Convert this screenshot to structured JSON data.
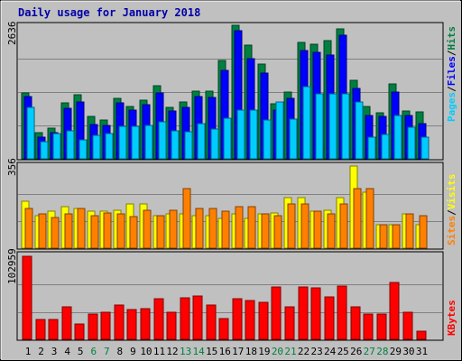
{
  "title": "Daily usage for January 2018",
  "colors": {
    "background": "#c0c0c0",
    "title": "#0000aa",
    "hits": "#008040",
    "files": "#0000ff",
    "pages": "#00ccff",
    "visits": "#ffff00",
    "sites": "#ff8000",
    "kbytes": "#ff0000",
    "weekend_label": "#008040"
  },
  "side_labels": {
    "top": [
      "Pages",
      "Files",
      "Hits"
    ],
    "mid": [
      "Sites",
      "Visits"
    ],
    "bottom": [
      "KBytes"
    ]
  },
  "chart_data": [
    {
      "type": "bar",
      "panel": "hits-files-pages",
      "max_label": "2636",
      "ylim": [
        0,
        2636
      ],
      "categories": [
        "1",
        "2",
        "3",
        "4",
        "5",
        "6",
        "7",
        "8",
        "9",
        "10",
        "11",
        "12",
        "13",
        "14",
        "15",
        "16",
        "17",
        "18",
        "19",
        "20",
        "21",
        "22",
        "23",
        "24",
        "25",
        "26",
        "27",
        "28",
        "29",
        "30",
        "31"
      ],
      "weekend_days": [
        "6",
        "7",
        "13",
        "14",
        "20",
        "21",
        "27",
        "28"
      ],
      "series": [
        {
          "name": "Hits",
          "values": [
            1300,
            520,
            600,
            1100,
            1270,
            830,
            760,
            1200,
            1030,
            1160,
            1450,
            1020,
            1130,
            1330,
            1330,
            1950,
            2636,
            2250,
            1870,
            1080,
            1310,
            2300,
            2260,
            2340,
            2560,
            1550,
            1030,
            900,
            1480,
            950,
            920
          ]
        },
        {
          "name": "Files",
          "values": [
            1230,
            430,
            520,
            1000,
            1130,
            680,
            660,
            1100,
            960,
            1070,
            1300,
            950,
            1020,
            1230,
            1210,
            1740,
            2530,
            1970,
            1690,
            970,
            1190,
            2130,
            2110,
            2050,
            2440,
            1390,
            860,
            840,
            1320,
            850,
            690
          ]
        },
        {
          "name": "Pages",
          "values": [
            1020,
            340,
            490,
            560,
            380,
            470,
            500,
            640,
            650,
            660,
            730,
            560,
            540,
            690,
            590,
            800,
            970,
            970,
            770,
            1130,
            780,
            1420,
            1280,
            1280,
            1290,
            1120,
            430,
            480,
            860,
            620,
            420
          ]
        }
      ]
    },
    {
      "type": "bar",
      "panel": "visits-sites",
      "max_label": "356",
      "ylim": [
        0,
        356
      ],
      "series": [
        {
          "name": "Visits",
          "values": [
            203,
            142,
            160,
            178,
            172,
            160,
            160,
            166,
            190,
            190,
            142,
            148,
            148,
            142,
            142,
            130,
            148,
            130,
            148,
            154,
            220,
            220,
            160,
            166,
            220,
            356,
            241,
            100,
            100,
            148,
            100
          ]
        },
        {
          "name": "Sites",
          "values": [
            172,
            148,
            132,
            148,
            172,
            140,
            154,
            148,
            136,
            166,
            140,
            166,
            260,
            172,
            172,
            160,
            178,
            178,
            148,
            140,
            190,
            190,
            160,
            150,
            190,
            260,
            260,
            100,
            100,
            148,
            142
          ]
        }
      ]
    },
    {
      "type": "bar",
      "panel": "kbytes",
      "max_label": "102959",
      "ylim": [
        0,
        102959
      ],
      "series": [
        {
          "name": "KBytes",
          "values": [
            102959,
            25000,
            25000,
            40000,
            19000,
            31000,
            34000,
            42000,
            37000,
            38000,
            50000,
            34000,
            51000,
            54000,
            43000,
            26000,
            50000,
            48000,
            46000,
            65000,
            40000,
            65000,
            64000,
            53000,
            66000,
            40000,
            31000,
            31000,
            71000,
            34000,
            10000
          ]
        }
      ]
    }
  ]
}
